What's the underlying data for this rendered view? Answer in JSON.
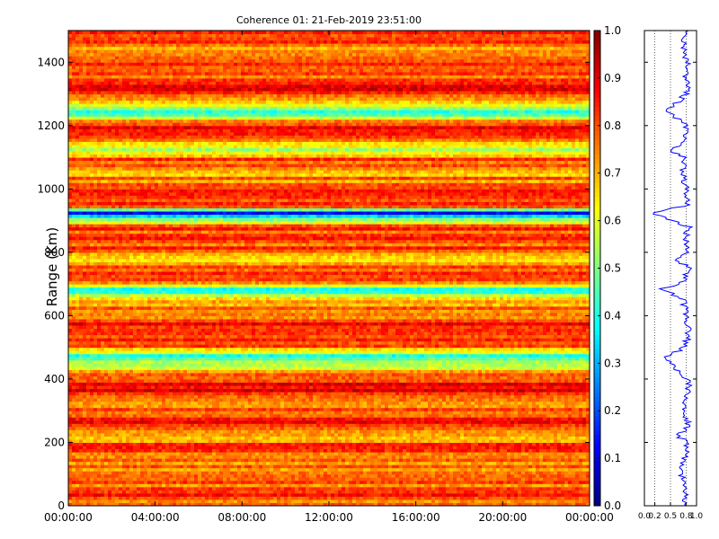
{
  "chart_data": [
    {
      "type": "heatmap",
      "title": "Coherence 01: 21-Feb-2019 23:51:00",
      "xlabel": "",
      "ylabel": "Range (Km)",
      "x_ticks": [
        "00:00:00",
        "04:00:00",
        "08:00:00",
        "12:00:00",
        "16:00:00",
        "20:00:00",
        "00:00:00"
      ],
      "y_ticks": [
        0,
        200,
        400,
        600,
        800,
        1000,
        1200,
        1400
      ],
      "ylim": [
        0,
        1500
      ],
      "x_range_hours": [
        0,
        24
      ],
      "colormap": "jet",
      "value_range": [
        0.0,
        1.0
      ],
      "colorbar_ticks": [
        "0.0",
        "0.1",
        "0.2",
        "0.3",
        "0.4",
        "0.5",
        "0.6",
        "0.7",
        "0.8",
        "0.9",
        "1.0"
      ],
      "range_profile": [
        {
          "range": 0,
          "value": 0.75
        },
        {
          "range": 50,
          "value": 0.8
        },
        {
          "range": 100,
          "value": 0.72
        },
        {
          "range": 150,
          "value": 0.78
        },
        {
          "range": 200,
          "value": 0.8
        },
        {
          "range": 220,
          "value": 0.65
        },
        {
          "range": 250,
          "value": 0.85
        },
        {
          "range": 300,
          "value": 0.76
        },
        {
          "range": 350,
          "value": 0.8
        },
        {
          "range": 380,
          "value": 0.88
        },
        {
          "range": 400,
          "value": 0.82
        },
        {
          "range": 470,
          "value": 0.4
        },
        {
          "range": 500,
          "value": 0.78
        },
        {
          "range": 550,
          "value": 0.85
        },
        {
          "range": 600,
          "value": 0.8
        },
        {
          "range": 650,
          "value": 0.75
        },
        {
          "range": 685,
          "value": 0.35
        },
        {
          "range": 700,
          "value": 0.72
        },
        {
          "range": 750,
          "value": 0.85
        },
        {
          "range": 780,
          "value": 0.6
        },
        {
          "range": 800,
          "value": 0.78
        },
        {
          "range": 850,
          "value": 0.8
        },
        {
          "range": 880,
          "value": 0.85
        },
        {
          "range": 925,
          "value": 0.15
        },
        {
          "range": 950,
          "value": 0.85
        },
        {
          "range": 1000,
          "value": 0.8
        },
        {
          "range": 1050,
          "value": 0.72
        },
        {
          "range": 1100,
          "value": 0.8
        },
        {
          "range": 1120,
          "value": 0.5
        },
        {
          "range": 1150,
          "value": 0.78
        },
        {
          "range": 1200,
          "value": 0.82
        },
        {
          "range": 1245,
          "value": 0.45
        },
        {
          "range": 1300,
          "value": 0.8
        },
        {
          "range": 1335,
          "value": 0.9
        },
        {
          "range": 1350,
          "value": 0.78
        },
        {
          "range": 1400,
          "value": 0.82
        },
        {
          "range": 1450,
          "value": 0.75
        },
        {
          "range": 1490,
          "value": 0.8
        }
      ]
    },
    {
      "type": "line",
      "title": "",
      "xlabel": "",
      "ylabel": "",
      "x_ticks": [
        "0.0",
        "0.2",
        "0.5",
        "0.8",
        "1.0"
      ],
      "xlim": [
        0,
        1
      ],
      "ylim": [
        0,
        1500
      ],
      "color": "#0000ff"
    }
  ]
}
